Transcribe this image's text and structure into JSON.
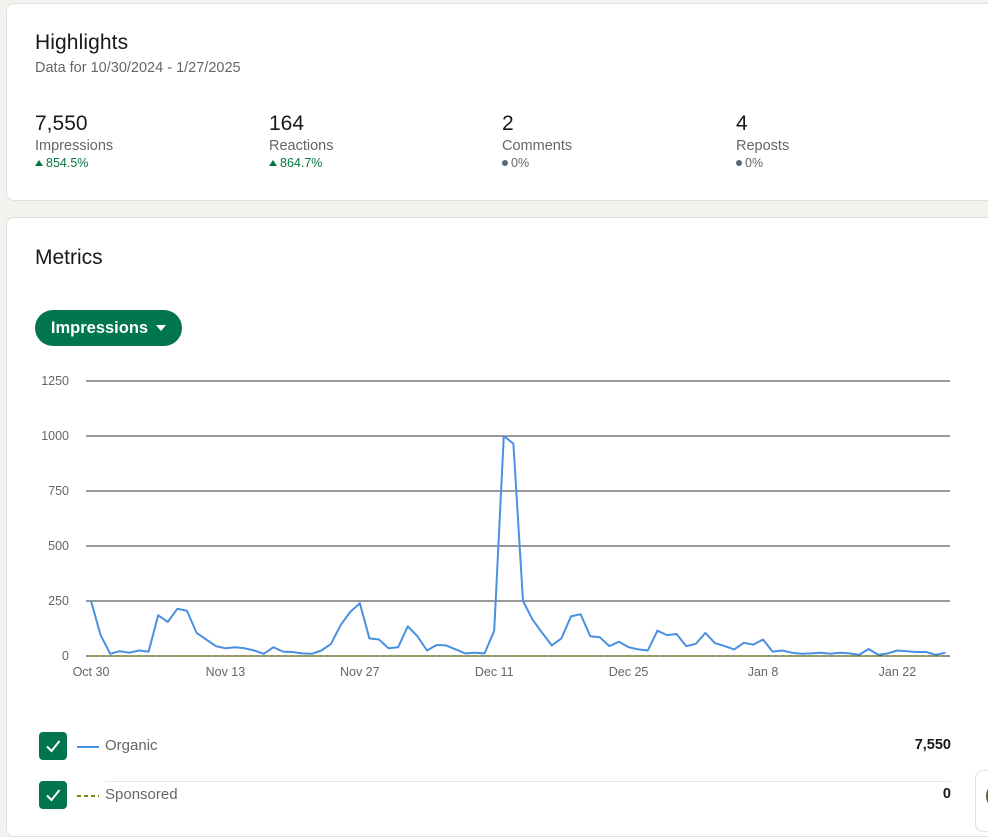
{
  "highlights": {
    "title": "Highlights",
    "subtitle": "Data for 10/30/2024 - 1/27/2025",
    "stats": [
      {
        "value": "7,550",
        "label": "Impressions",
        "change": "854.5%",
        "trend": "up"
      },
      {
        "value": "164",
        "label": "Reactions",
        "change": "864.7%",
        "trend": "up"
      },
      {
        "value": "2",
        "label": "Comments",
        "change": "0%",
        "trend": "flat"
      },
      {
        "value": "4",
        "label": "Reposts",
        "change": "0%",
        "trend": "flat"
      }
    ]
  },
  "metrics": {
    "title": "Metrics",
    "metric_selector": "Impressions"
  },
  "chart_data": {
    "type": "line",
    "ylim": [
      0,
      1250
    ],
    "yticks": [
      "0",
      "250",
      "500",
      "750",
      "1000",
      "1250"
    ],
    "xtick_labels": [
      "Oct 30",
      "Nov 13",
      "Nov 27",
      "Dec 11",
      "Dec 25",
      "Jan 8",
      "Jan 22"
    ],
    "x_start": "Oct 30",
    "grid": true,
    "series": [
      {
        "name": "Organic",
        "color": "#4a90e2",
        "style": "solid",
        "values": [
          250,
          95,
          10,
          22,
          15,
          25,
          20,
          185,
          155,
          215,
          205,
          105,
          75,
          45,
          35,
          40,
          35,
          25,
          10,
          40,
          20,
          18,
          12,
          10,
          25,
          55,
          140,
          200,
          240,
          80,
          75,
          35,
          40,
          135,
          90,
          25,
          50,
          48,
          30,
          12,
          15,
          12,
          115,
          1000,
          965,
          250,
          165,
          105,
          48,
          80,
          180,
          190,
          90,
          85,
          45,
          65,
          40,
          30,
          25,
          115,
          95,
          100,
          45,
          55,
          105,
          58,
          45,
          30,
          60,
          52,
          75,
          20,
          25,
          15,
          10,
          12,
          15,
          10,
          15,
          12,
          5,
          32,
          5,
          12,
          25,
          22,
          18,
          18,
          5,
          15
        ],
        "total": "7,550"
      },
      {
        "name": "Sponsored",
        "color": "#7a8a1a",
        "style": "dashed",
        "values": [
          0,
          0,
          0,
          0,
          0,
          0,
          0,
          0,
          0,
          0,
          0,
          0,
          0,
          0,
          0,
          0,
          0,
          0,
          0,
          0,
          0,
          0,
          0,
          0,
          0,
          0,
          0,
          0,
          0,
          0,
          0,
          0,
          0,
          0,
          0,
          0,
          0,
          0,
          0,
          0,
          0,
          0,
          0,
          0,
          0,
          0,
          0,
          0,
          0,
          0,
          0,
          0,
          0,
          0,
          0,
          0,
          0,
          0,
          0,
          0,
          0,
          0,
          0,
          0,
          0,
          0,
          0,
          0,
          0,
          0,
          0,
          0,
          0,
          0,
          0,
          0,
          0,
          0,
          0,
          0,
          0,
          0,
          0,
          0,
          0,
          0,
          0,
          0,
          0,
          0
        ],
        "total": "0"
      }
    ]
  },
  "colors": {
    "accent": "#01754f",
    "positive": "#057642",
    "organic_line": "#4a90e2",
    "sponsored_line": "#7a8a1a"
  }
}
